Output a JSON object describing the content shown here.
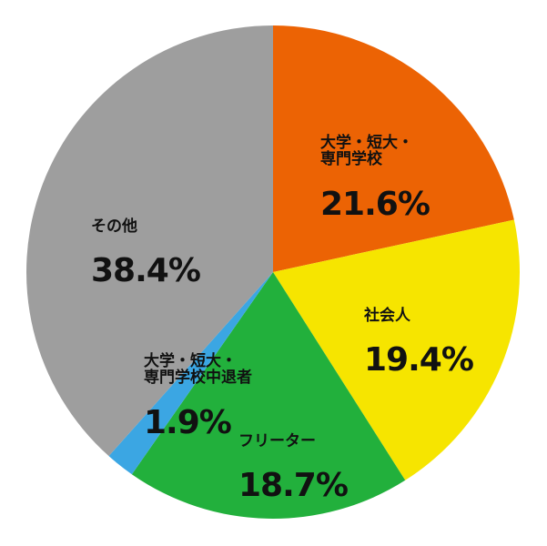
{
  "chart_data": {
    "type": "pie",
    "slices": [
      {
        "label": "大学・短大・\n専門学校",
        "value": 21.6,
        "value_label": "21.6%",
        "color": "#ec6304"
      },
      {
        "label": "社会人",
        "value": 19.4,
        "value_label": "19.4%",
        "color": "#f6e500"
      },
      {
        "label": "フリーター",
        "value": 18.7,
        "value_label": "18.7%",
        "color": "#22b03c"
      },
      {
        "label": "大学・短大・\n専門学校中退者",
        "value": 1.9,
        "value_label": "1.9%",
        "color": "#3ba6e3"
      },
      {
        "label": "その他",
        "value": 38.4,
        "value_label": "38.4%",
        "color": "#9e9e9e"
      }
    ],
    "start": "top, clockwise",
    "legend": "none"
  }
}
